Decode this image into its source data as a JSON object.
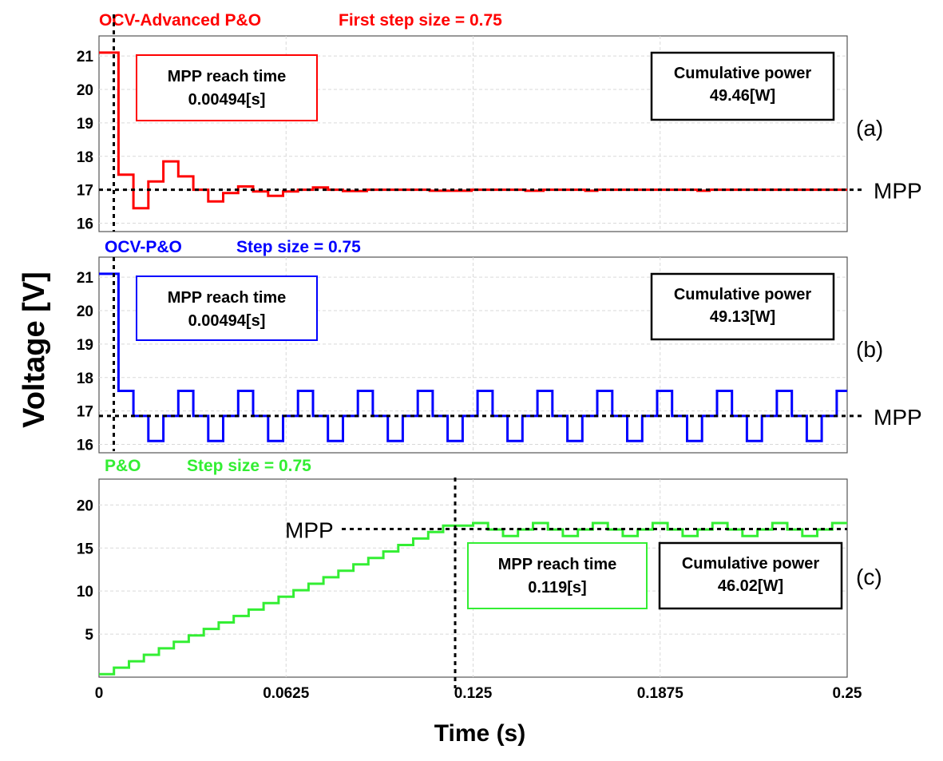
{
  "figure": {
    "ylabel": "Voltage [V]",
    "xlabel": "Time (s)",
    "x_ticks": [
      "0",
      "0.0625",
      "0.125",
      "0.1875",
      "0.25"
    ]
  },
  "chart_data": [
    {
      "type": "line",
      "panel_label": "(a)",
      "title": "OCV-Advanced P&O",
      "subtitle": "First step size = 0.75",
      "color": "#ff0000",
      "xlim": [
        0,
        0.25
      ],
      "ylim": [
        15.75,
        21.6
      ],
      "y_ticks": [
        "16",
        "17",
        "18",
        "19",
        "20",
        "21"
      ],
      "grid": true,
      "mpp_label": "MPP",
      "mpp_value": 17.0,
      "reach_marker_time": 0.00494,
      "reach_box": {
        "title": "MPP reach time",
        "value": "0.00494[s]"
      },
      "power_box": {
        "title": "Cumulative power",
        "value": "49.46[W]"
      },
      "series": [
        {
          "values": [
            [
              0,
              21.1
            ],
            [
              0.0065,
              21.1
            ],
            [
              0.0065,
              17.45
            ],
            [
              0.0115,
              17.45
            ],
            [
              0.0115,
              16.45
            ],
            [
              0.0165,
              16.45
            ],
            [
              0.0165,
              17.25
            ],
            [
              0.0215,
              17.25
            ],
            [
              0.0215,
              17.85
            ],
            [
              0.0265,
              17.85
            ],
            [
              0.0265,
              17.4
            ],
            [
              0.0315,
              17.4
            ],
            [
              0.0315,
              17.0
            ],
            [
              0.0365,
              17.0
            ],
            [
              0.0365,
              16.65
            ],
            [
              0.0415,
              16.65
            ],
            [
              0.0415,
              16.9
            ],
            [
              0.0465,
              16.9
            ],
            [
              0.0465,
              17.1
            ],
            [
              0.0515,
              17.1
            ],
            [
              0.0515,
              16.95
            ],
            [
              0.0565,
              16.95
            ],
            [
              0.0565,
              16.82
            ],
            [
              0.0615,
              16.82
            ],
            [
              0.0615,
              16.95
            ],
            [
              0.0665,
              16.95
            ],
            [
              0.0665,
              17.0
            ],
            [
              0.0715,
              17.0
            ],
            [
              0.0715,
              17.07
            ],
            [
              0.0765,
              17.07
            ],
            [
              0.0765,
              17.0
            ],
            [
              0.0815,
              17.0
            ],
            [
              0.0815,
              16.96
            ],
            [
              0.0895,
              16.96
            ],
            [
              0.0895,
              17.0
            ],
            [
              0.1105,
              17.0
            ],
            [
              0.1105,
              16.97
            ],
            [
              0.1245,
              16.97
            ],
            [
              0.1245,
              17.0
            ],
            [
              0.1425,
              17.0
            ],
            [
              0.1425,
              16.97
            ],
            [
              0.1485,
              16.97
            ],
            [
              0.1485,
              17.0
            ],
            [
              0.1625,
              17.0
            ],
            [
              0.1625,
              16.97
            ],
            [
              0.1665,
              16.97
            ],
            [
              0.1665,
              17.0
            ],
            [
              0.2,
              17.0
            ],
            [
              0.2,
              16.97
            ],
            [
              0.204,
              16.97
            ],
            [
              0.204,
              17.0
            ],
            [
              0.25,
              17.0
            ]
          ]
        }
      ]
    },
    {
      "type": "line",
      "panel_label": "(b)",
      "title": "OCV-P&O",
      "subtitle": "Step size = 0.75",
      "color": "#0000ff",
      "xlim": [
        0,
        0.25
      ],
      "ylim": [
        15.75,
        21.6
      ],
      "y_ticks": [
        "16",
        "17",
        "18",
        "19",
        "20",
        "21"
      ],
      "grid": true,
      "mpp_label": "MPP",
      "mpp_value": 16.85,
      "reach_marker_time": 0.00494,
      "reach_box": {
        "title": "MPP reach time",
        "value": "0.00494[s]"
      },
      "power_box": {
        "title": "Cumulative power",
        "value": "49.13[W]"
      },
      "series": [
        {
          "values": [
            [
              0,
              21.1
            ],
            [
              0.0065,
              21.1
            ],
            [
              0.0065,
              17.6
            ],
            [
              0.0115,
              17.6
            ],
            [
              0.0115,
              16.85
            ],
            [
              0.0165,
              16.85
            ],
            [
              0.0165,
              16.1
            ],
            [
              0.0215,
              16.1
            ],
            [
              0.0215,
              16.85
            ],
            [
              0.0265,
              16.85
            ],
            [
              0.0265,
              17.6
            ],
            [
              0.0315,
              17.6
            ],
            [
              0.0315,
              16.85
            ],
            [
              0.0365,
              16.85
            ],
            [
              0.0365,
              16.1
            ],
            [
              0.0415,
              16.1
            ],
            [
              0.0415,
              16.85
            ],
            [
              0.0465,
              16.85
            ],
            [
              0.0465,
              17.6
            ],
            [
              0.0515,
              17.6
            ],
            [
              0.0515,
              16.85
            ],
            [
              0.0565,
              16.85
            ],
            [
              0.0565,
              16.1
            ],
            [
              0.0615,
              16.1
            ],
            [
              0.0615,
              16.85
            ],
            [
              0.0665,
              16.85
            ],
            [
              0.0665,
              17.6
            ],
            [
              0.0715,
              17.6
            ],
            [
              0.0715,
              16.85
            ],
            [
              0.0765,
              16.85
            ],
            [
              0.0765,
              16.1
            ],
            [
              0.0815,
              16.1
            ],
            [
              0.0815,
              16.85
            ],
            [
              0.0865,
              16.85
            ],
            [
              0.0865,
              17.6
            ],
            [
              0.0915,
              17.6
            ],
            [
              0.0915,
              16.85
            ],
            [
              0.0965,
              16.85
            ],
            [
              0.0965,
              16.1
            ],
            [
              0.1015,
              16.1
            ],
            [
              0.1015,
              16.85
            ],
            [
              0.1065,
              16.85
            ],
            [
              0.1065,
              17.6
            ],
            [
              0.1115,
              17.6
            ],
            [
              0.1115,
              16.85
            ],
            [
              0.1165,
              16.85
            ],
            [
              0.1165,
              16.1
            ],
            [
              0.1215,
              16.1
            ],
            [
              0.1215,
              16.85
            ],
            [
              0.1265,
              16.85
            ],
            [
              0.1265,
              17.6
            ],
            [
              0.1315,
              17.6
            ],
            [
              0.1315,
              16.85
            ],
            [
              0.1365,
              16.85
            ],
            [
              0.1365,
              16.1
            ],
            [
              0.1415,
              16.1
            ],
            [
              0.1415,
              16.85
            ],
            [
              0.1465,
              16.85
            ],
            [
              0.1465,
              17.6
            ],
            [
              0.1515,
              17.6
            ],
            [
              0.1515,
              16.85
            ],
            [
              0.1565,
              16.85
            ],
            [
              0.1565,
              16.1
            ],
            [
              0.1615,
              16.1
            ],
            [
              0.1615,
              16.85
            ],
            [
              0.1665,
              16.85
            ],
            [
              0.1665,
              17.6
            ],
            [
              0.1715,
              17.6
            ],
            [
              0.1715,
              16.85
            ],
            [
              0.1765,
              16.85
            ],
            [
              0.1765,
              16.1
            ],
            [
              0.1815,
              16.1
            ],
            [
              0.1815,
              16.85
            ],
            [
              0.1865,
              16.85
            ],
            [
              0.1865,
              17.6
            ],
            [
              0.1915,
              17.6
            ],
            [
              0.1915,
              16.85
            ],
            [
              0.1965,
              16.85
            ],
            [
              0.1965,
              16.1
            ],
            [
              0.2015,
              16.1
            ],
            [
              0.2015,
              16.85
            ],
            [
              0.2065,
              16.85
            ],
            [
              0.2065,
              17.6
            ],
            [
              0.2115,
              17.6
            ],
            [
              0.2115,
              16.85
            ],
            [
              0.2165,
              16.85
            ],
            [
              0.2165,
              16.1
            ],
            [
              0.2215,
              16.1
            ],
            [
              0.2215,
              16.85
            ],
            [
              0.2265,
              16.85
            ],
            [
              0.2265,
              17.6
            ],
            [
              0.2315,
              17.6
            ],
            [
              0.2315,
              16.85
            ],
            [
              0.2365,
              16.85
            ],
            [
              0.2365,
              16.1
            ],
            [
              0.2415,
              16.1
            ],
            [
              0.2415,
              16.85
            ],
            [
              0.2465,
              16.85
            ],
            [
              0.2465,
              17.6
            ],
            [
              0.25,
              17.6
            ]
          ]
        }
      ]
    },
    {
      "type": "line",
      "panel_label": "(c)",
      "title": "P&O",
      "subtitle": "Step size = 0.75",
      "color": "#33ee33",
      "xlim": [
        0,
        0.25
      ],
      "ylim": [
        0,
        23
      ],
      "y_ticks": [
        "5",
        "10",
        "15",
        "20"
      ],
      "grid": true,
      "mpp_label": "MPP",
      "mpp_value": 17.2,
      "reach_marker_time": 0.119,
      "reach_box": {
        "title": "MPP reach time",
        "value": "0.119[s]"
      },
      "power_box": {
        "title": "Cumulative power",
        "value": "46.02[W]"
      },
      "series": [
        {
          "values": [
            [
              0,
              0.35
            ],
            [
              0.005,
              0.35
            ],
            [
              0.005,
              1.1
            ],
            [
              0.01,
              1.1
            ],
            [
              0.01,
              1.85
            ],
            [
              0.015,
              1.85
            ],
            [
              0.015,
              2.6
            ],
            [
              0.02,
              2.6
            ],
            [
              0.02,
              3.35
            ],
            [
              0.025,
              3.35
            ],
            [
              0.025,
              4.1
            ],
            [
              0.03,
              4.1
            ],
            [
              0.03,
              4.85
            ],
            [
              0.035,
              4.85
            ],
            [
              0.035,
              5.6
            ],
            [
              0.04,
              5.6
            ],
            [
              0.04,
              6.35
            ],
            [
              0.045,
              6.35
            ],
            [
              0.045,
              7.1
            ],
            [
              0.05,
              7.1
            ],
            [
              0.05,
              7.85
            ],
            [
              0.055,
              7.85
            ],
            [
              0.055,
              8.6
            ],
            [
              0.06,
              8.6
            ],
            [
              0.06,
              9.35
            ],
            [
              0.065,
              9.35
            ],
            [
              0.065,
              10.1
            ],
            [
              0.07,
              10.1
            ],
            [
              0.07,
              10.85
            ],
            [
              0.075,
              10.85
            ],
            [
              0.075,
              11.6
            ],
            [
              0.08,
              11.6
            ],
            [
              0.08,
              12.35
            ],
            [
              0.085,
              12.35
            ],
            [
              0.085,
              13.1
            ],
            [
              0.09,
              13.1
            ],
            [
              0.09,
              13.85
            ],
            [
              0.095,
              13.85
            ],
            [
              0.095,
              14.6
            ],
            [
              0.1,
              14.6
            ],
            [
              0.1,
              15.35
            ],
            [
              0.105,
              15.35
            ],
            [
              0.105,
              16.1
            ],
            [
              0.11,
              16.1
            ],
            [
              0.11,
              16.85
            ],
            [
              0.115,
              16.85
            ],
            [
              0.115,
              17.6
            ],
            [
              0.125,
              17.6
            ],
            [
              0.125,
              17.9
            ],
            [
              0.13,
              17.9
            ],
            [
              0.13,
              17.15
            ],
            [
              0.135,
              17.15
            ],
            [
              0.135,
              16.4
            ],
            [
              0.14,
              16.4
            ],
            [
              0.14,
              17.15
            ],
            [
              0.145,
              17.15
            ],
            [
              0.145,
              17.9
            ],
            [
              0.15,
              17.9
            ],
            [
              0.15,
              17.15
            ],
            [
              0.155,
              17.15
            ],
            [
              0.155,
              16.4
            ],
            [
              0.16,
              16.4
            ],
            [
              0.16,
              17.15
            ],
            [
              0.165,
              17.15
            ],
            [
              0.165,
              17.9
            ],
            [
              0.17,
              17.9
            ],
            [
              0.17,
              17.15
            ],
            [
              0.175,
              17.15
            ],
            [
              0.175,
              16.4
            ],
            [
              0.18,
              16.4
            ],
            [
              0.18,
              17.15
            ],
            [
              0.185,
              17.15
            ],
            [
              0.185,
              17.9
            ],
            [
              0.19,
              17.9
            ],
            [
              0.19,
              17.15
            ],
            [
              0.195,
              17.15
            ],
            [
              0.195,
              16.4
            ],
            [
              0.2,
              16.4
            ],
            [
              0.2,
              17.15
            ],
            [
              0.205,
              17.15
            ],
            [
              0.205,
              17.9
            ],
            [
              0.21,
              17.9
            ],
            [
              0.21,
              17.15
            ],
            [
              0.215,
              17.15
            ],
            [
              0.215,
              16.4
            ],
            [
              0.22,
              16.4
            ],
            [
              0.22,
              17.15
            ],
            [
              0.225,
              17.15
            ],
            [
              0.225,
              17.9
            ],
            [
              0.23,
              17.9
            ],
            [
              0.23,
              17.15
            ],
            [
              0.235,
              17.15
            ],
            [
              0.235,
              16.4
            ],
            [
              0.24,
              16.4
            ],
            [
              0.24,
              17.15
            ],
            [
              0.245,
              17.15
            ],
            [
              0.245,
              17.9
            ],
            [
              0.25,
              17.9
            ]
          ]
        }
      ]
    }
  ]
}
